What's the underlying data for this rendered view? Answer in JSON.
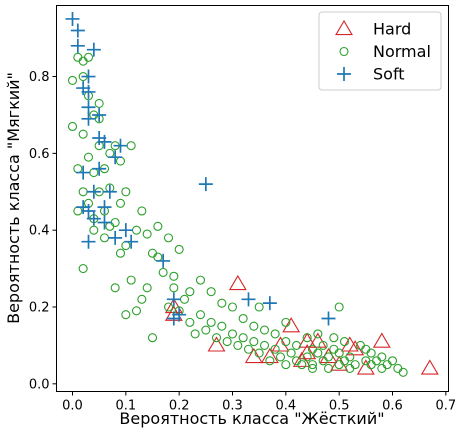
{
  "chart_data": {
    "type": "scatter",
    "xlabel": "Вероятность класса \"Жёсткий\"",
    "ylabel": "Вероятность класса \"Мягкий\"",
    "xlim": [
      -0.03,
      0.705
    ],
    "ylim": [
      -0.02,
      0.985
    ],
    "xticks": [
      0.0,
      0.1,
      0.2,
      0.3,
      0.4,
      0.5,
      0.6,
      0.7
    ],
    "xtick_labels": [
      "0.0",
      "0.1",
      "0.2",
      "0.3",
      "0.4",
      "0.5",
      "0.6",
      "0.7"
    ],
    "yticks": [
      0.0,
      0.2,
      0.4,
      0.6,
      0.8
    ],
    "ytick_labels": [
      "0.0",
      "0.2",
      "0.4",
      "0.6",
      "0.8"
    ],
    "grid": false,
    "legend_position": "top-right",
    "series": [
      {
        "name": "Hard",
        "marker": "triangle-open",
        "color": "#d62728",
        "points": [
          [
            0.67,
            0.04
          ],
          [
            0.58,
            0.11
          ],
          [
            0.55,
            0.04
          ],
          [
            0.53,
            0.09
          ],
          [
            0.52,
            0.1
          ],
          [
            0.5,
            0.05
          ],
          [
            0.46,
            0.11
          ],
          [
            0.44,
            0.08
          ],
          [
            0.43,
            0.06
          ],
          [
            0.41,
            0.15
          ],
          [
            0.39,
            0.1
          ],
          [
            0.34,
            0.07
          ],
          [
            0.31,
            0.26
          ],
          [
            0.27,
            0.1
          ],
          [
            0.19,
            0.18
          ],
          [
            0.19,
            0.2
          ],
          [
            0.48,
            0.07
          ],
          [
            0.44,
            0.11
          ],
          [
            0.37,
            0.07
          ]
        ]
      },
      {
        "name": "Normal",
        "marker": "circle-open",
        "color": "#2ca02c",
        "points": [
          [
            0.61,
            0.04
          ],
          [
            0.6,
            0.06
          ],
          [
            0.59,
            0.05
          ],
          [
            0.58,
            0.07
          ],
          [
            0.57,
            0.06
          ],
          [
            0.56,
            0.05
          ],
          [
            0.56,
            0.08
          ],
          [
            0.55,
            0.09
          ],
          [
            0.55,
            0.06
          ],
          [
            0.54,
            0.1
          ],
          [
            0.53,
            0.05
          ],
          [
            0.52,
            0.07
          ],
          [
            0.52,
            0.04
          ],
          [
            0.51,
            0.06
          ],
          [
            0.51,
            0.11
          ],
          [
            0.5,
            0.08
          ],
          [
            0.5,
            0.05
          ],
          [
            0.49,
            0.09
          ],
          [
            0.49,
            0.12
          ],
          [
            0.48,
            0.07
          ],
          [
            0.48,
            0.04
          ],
          [
            0.47,
            0.1
          ],
          [
            0.47,
            0.06
          ],
          [
            0.46,
            0.08
          ],
          [
            0.46,
            0.13
          ],
          [
            0.45,
            0.05
          ],
          [
            0.45,
            0.09
          ],
          [
            0.44,
            0.07
          ],
          [
            0.44,
            0.12
          ],
          [
            0.43,
            0.05
          ],
          [
            0.42,
            0.1
          ],
          [
            0.42,
            0.06
          ],
          [
            0.41,
            0.08
          ],
          [
            0.4,
            0.11
          ],
          [
            0.4,
            0.05
          ],
          [
            0.39,
            0.07
          ],
          [
            0.38,
            0.09
          ],
          [
            0.38,
            0.13
          ],
          [
            0.37,
            0.06
          ],
          [
            0.36,
            0.1
          ],
          [
            0.36,
            0.14
          ],
          [
            0.35,
            0.08
          ],
          [
            0.34,
            0.11
          ],
          [
            0.34,
            0.15
          ],
          [
            0.33,
            0.09
          ],
          [
            0.32,
            0.12
          ],
          [
            0.32,
            0.17
          ],
          [
            0.31,
            0.1
          ],
          [
            0.3,
            0.13
          ],
          [
            0.3,
            0.2
          ],
          [
            0.29,
            0.11
          ],
          [
            0.28,
            0.15
          ],
          [
            0.28,
            0.21
          ],
          [
            0.27,
            0.12
          ],
          [
            0.26,
            0.16
          ],
          [
            0.26,
            0.24
          ],
          [
            0.25,
            0.14
          ],
          [
            0.24,
            0.18
          ],
          [
            0.24,
            0.27
          ],
          [
            0.23,
            0.13
          ],
          [
            0.22,
            0.16
          ],
          [
            0.21,
            0.22
          ],
          [
            0.2,
            0.19
          ],
          [
            0.2,
            0.35
          ],
          [
            0.19,
            0.25
          ],
          [
            0.18,
            0.38
          ],
          [
            0.18,
            0.2
          ],
          [
            0.17,
            0.29
          ],
          [
            0.16,
            0.41
          ],
          [
            0.16,
            0.33
          ],
          [
            0.15,
            0.12
          ],
          [
            0.14,
            0.25
          ],
          [
            0.14,
            0.39
          ],
          [
            0.13,
            0.22
          ],
          [
            0.13,
            0.45
          ],
          [
            0.12,
            0.19
          ],
          [
            0.12,
            0.4
          ],
          [
            0.11,
            0.27
          ],
          [
            0.11,
            0.62
          ],
          [
            0.1,
            0.5
          ],
          [
            0.1,
            0.18
          ],
          [
            0.1,
            0.36
          ],
          [
            0.09,
            0.47
          ],
          [
            0.09,
            0.58
          ],
          [
            0.08,
            0.42
          ],
          [
            0.08,
            0.62
          ],
          [
            0.08,
            0.25
          ],
          [
            0.07,
            0.51
          ],
          [
            0.07,
            0.6
          ],
          [
            0.06,
            0.45
          ],
          [
            0.06,
            0.56
          ],
          [
            0.06,
            0.38
          ],
          [
            0.05,
            0.5
          ],
          [
            0.05,
            0.62
          ],
          [
            0.05,
            0.69
          ],
          [
            0.04,
            0.43
          ],
          [
            0.04,
            0.55
          ],
          [
            0.04,
            0.7
          ],
          [
            0.03,
            0.47
          ],
          [
            0.03,
            0.59
          ],
          [
            0.03,
            0.75
          ],
          [
            0.02,
            0.5
          ],
          [
            0.02,
            0.65
          ],
          [
            0.02,
            0.8
          ],
          [
            0.01,
            0.56
          ],
          [
            0.01,
            0.85
          ],
          [
            0.01,
            0.45
          ],
          [
            0.0,
            0.67
          ],
          [
            0.0,
            0.79
          ],
          [
            0.02,
            0.3
          ],
          [
            0.04,
            0.4
          ],
          [
            0.05,
            0.73
          ],
          [
            0.03,
            0.85
          ],
          [
            0.02,
            0.84
          ],
          [
            0.09,
            0.34
          ],
          [
            0.07,
            0.41
          ],
          [
            0.15,
            0.34
          ],
          [
            0.19,
            0.28
          ],
          [
            0.22,
            0.24
          ],
          [
            0.5,
            0.2
          ],
          [
            0.58,
            0.04
          ],
          [
            0.62,
            0.03
          ],
          [
            0.45,
            0.04
          ],
          [
            0.35,
            0.2
          ],
          [
            0.4,
            0.16
          ]
        ]
      },
      {
        "name": "Soft",
        "marker": "plus",
        "color": "#1f77b4",
        "points": [
          [
            0.0,
            0.95
          ],
          [
            0.01,
            0.92
          ],
          [
            0.01,
            0.88
          ],
          [
            0.04,
            0.87
          ],
          [
            0.03,
            0.8
          ],
          [
            0.02,
            0.77
          ],
          [
            0.03,
            0.76
          ],
          [
            0.03,
            0.72
          ],
          [
            0.05,
            0.7
          ],
          [
            0.05,
            0.64
          ],
          [
            0.06,
            0.63
          ],
          [
            0.09,
            0.62
          ],
          [
            0.08,
            0.59
          ],
          [
            0.05,
            0.56
          ],
          [
            0.02,
            0.55
          ],
          [
            0.04,
            0.5
          ],
          [
            0.07,
            0.5
          ],
          [
            0.02,
            0.46
          ],
          [
            0.03,
            0.45
          ],
          [
            0.06,
            0.46
          ],
          [
            0.04,
            0.43
          ],
          [
            0.06,
            0.42
          ],
          [
            0.08,
            0.38
          ],
          [
            0.1,
            0.4
          ],
          [
            0.11,
            0.37
          ],
          [
            0.03,
            0.37
          ],
          [
            0.17,
            0.32
          ],
          [
            0.25,
            0.52
          ],
          [
            0.19,
            0.22
          ],
          [
            0.2,
            0.18
          ],
          [
            0.19,
            0.17
          ],
          [
            0.33,
            0.22
          ],
          [
            0.37,
            0.21
          ],
          [
            0.48,
            0.17
          ],
          [
            0.03,
            0.69
          ]
        ]
      }
    ]
  }
}
